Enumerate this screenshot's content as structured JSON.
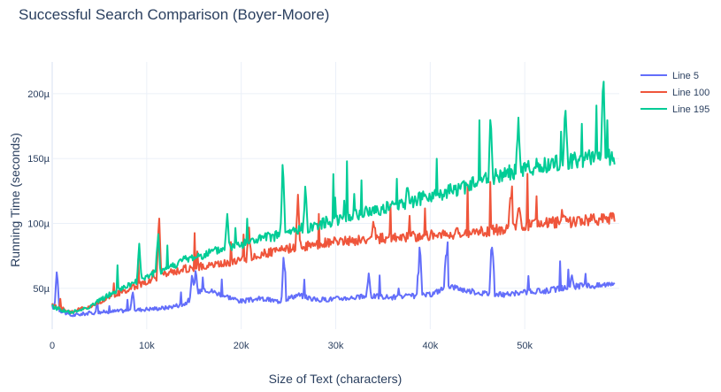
{
  "chart_data": {
    "type": "line",
    "title": "Successful Search Comparison (Boyer-Moore)",
    "xlabel": "Size of Text (characters)",
    "ylabel": "Running Time (seconds)",
    "xlim": [
      0,
      60000
    ],
    "ylim": [
      1.85e-05,
      0.0002245
    ],
    "grid": true,
    "legend_position": "top-right",
    "x_ticks": [
      {
        "value": 0,
        "label": "0"
      },
      {
        "value": 10000,
        "label": "10k"
      },
      {
        "value": 20000,
        "label": "20k"
      },
      {
        "value": 30000,
        "label": "30k"
      },
      {
        "value": 40000,
        "label": "40k"
      },
      {
        "value": 50000,
        "label": "50k"
      }
    ],
    "y_ticks": [
      {
        "value": 5e-05,
        "label": "50µ"
      },
      {
        "value": 0.0001,
        "label": "100µ"
      },
      {
        "value": 0.00015,
        "label": "150µ"
      },
      {
        "value": 0.0002,
        "label": "200µ"
      }
    ],
    "x": [
      0,
      2000,
      4000,
      6000,
      8000,
      10000,
      12000,
      14000,
      16000,
      18000,
      20000,
      22000,
      24000,
      26000,
      28000,
      30000,
      32000,
      34000,
      36000,
      38000,
      40000,
      42000,
      44000,
      46000,
      48000,
      50000,
      52000,
      54000,
      56000,
      58000,
      59500
    ],
    "series": [
      {
        "name": "Line 5",
        "color": "#636efa",
        "values": [
          3.6e-05,
          2.9e-05,
          3.1e-05,
          3.2e-05,
          3.3e-05,
          3.4e-05,
          3.5e-05,
          3.8e-05,
          5e-05,
          4.5e-05,
          4e-05,
          4.2e-05,
          4e-05,
          4.5e-05,
          4.1e-05,
          4.2e-05,
          4.3e-05,
          4.4e-05,
          4.3e-05,
          4.4e-05,
          4.5e-05,
          5.2e-05,
          4.8e-05,
          4.6e-05,
          4.5e-05,
          4.7e-05,
          4.8e-05,
          5e-05,
          5.2e-05,
          5.2e-05,
          5.5e-05
        ],
        "spikes": [
          [
            500,
            6.6e-05
          ],
          [
            8500,
            4.8e-05
          ],
          [
            14800,
            6e-05
          ],
          [
            15200,
            6.5e-05
          ],
          [
            24500,
            7.8e-05
          ],
          [
            33500,
            6.2e-05
          ],
          [
            38900,
            8.5e-05
          ],
          [
            41700,
            8.4e-05
          ],
          [
            46500,
            8.8e-05
          ],
          [
            55000,
            6e-05
          ]
        ]
      },
      {
        "name": "Line 100",
        "color": "#ef553b",
        "values": [
          3.7e-05,
          3.2e-05,
          3.6e-05,
          4.3e-05,
          4.9e-05,
          5.5e-05,
          6.1e-05,
          6.5e-05,
          6.7e-05,
          6.9e-05,
          7.2e-05,
          7.6e-05,
          7.9e-05,
          8.2e-05,
          8.4e-05,
          8.6e-05,
          8.7e-05,
          8.8e-05,
          8.9e-05,
          9e-05,
          9.1e-05,
          9.2e-05,
          9.3e-05,
          9.4e-05,
          9.6e-05,
          9.8e-05,
          0.0001,
          0.000101,
          0.000102,
          0.000103,
          0.000105
        ],
        "spikes": [
          [
            11300,
            0.000108
          ],
          [
            20800,
            9.6e-05
          ],
          [
            26000,
            0.00012
          ],
          [
            34000,
            0.000105
          ],
          [
            48500,
            0.000128
          ],
          [
            49400,
            0.000118
          ],
          [
            51200,
            0.000102
          ],
          [
            54000,
            0.00011
          ]
        ]
      },
      {
        "name": "Line 195",
        "color": "#00cc96",
        "values": [
          3.6e-05,
          3.1e-05,
          3.6e-05,
          4.5e-05,
          5.2e-05,
          5.9e-05,
          6.5e-05,
          7.2e-05,
          7.6e-05,
          8e-05,
          8.4e-05,
          8.8e-05,
          9.1e-05,
          9.5e-05,
          9.9e-05,
          0.000103,
          0.000106,
          0.00011,
          0.000113,
          0.000117,
          0.000121,
          0.000125,
          0.000129,
          0.000134,
          0.000138,
          0.000142,
          0.000145,
          0.000147,
          0.00015,
          0.000151,
          0.000152
        ],
        "spikes": [
          [
            9200,
            8.5e-05
          ],
          [
            11200,
            9.5e-05
          ],
          [
            18500,
            0.000108
          ],
          [
            24400,
            0.000149
          ],
          [
            26800,
            0.000128
          ],
          [
            37600,
            0.000132
          ],
          [
            46400,
            0.000184
          ],
          [
            49300,
            0.00018
          ],
          [
            54300,
            0.000188
          ],
          [
            58300,
            0.000215
          ]
        ]
      }
    ]
  }
}
